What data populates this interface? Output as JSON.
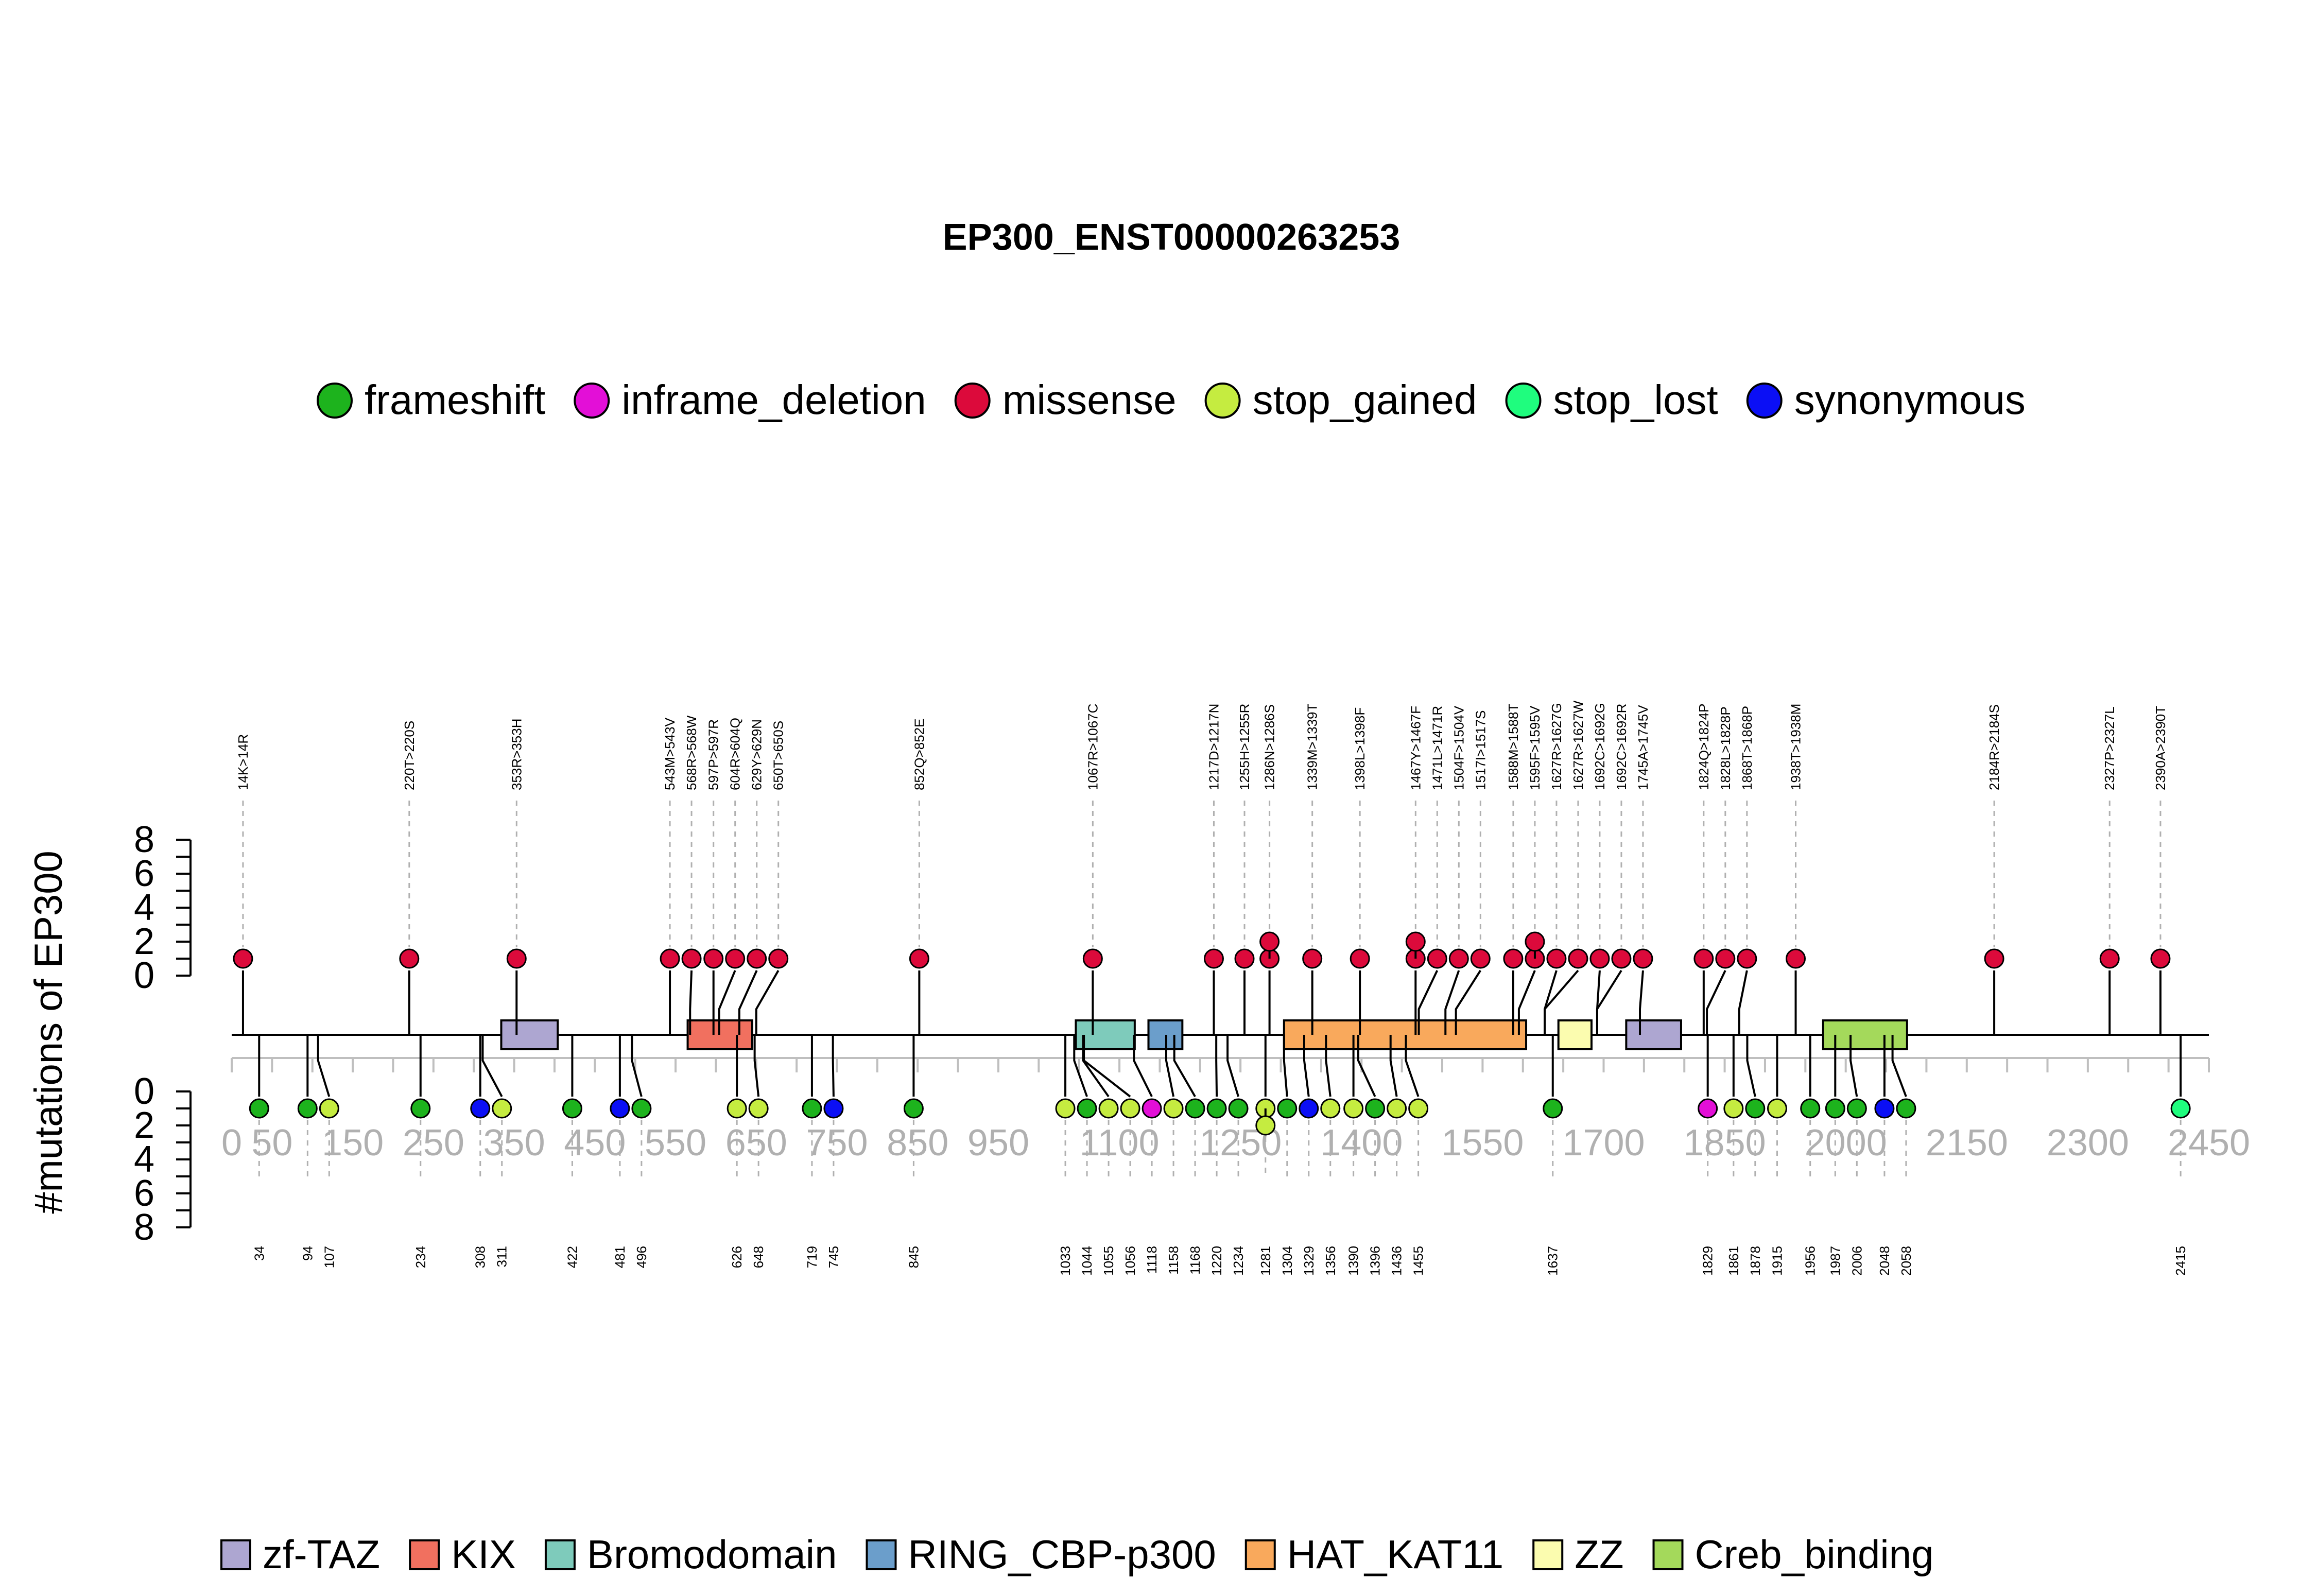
{
  "chart_data": {
    "type": "lollipop",
    "title": "EP300_ENST00000263253",
    "ylabel": "#mutations of EP300",
    "xlim": [
      0,
      2450
    ],
    "ylim": [
      0,
      8
    ],
    "x_ticks": [
      0,
      50,
      150,
      250,
      350,
      450,
      550,
      650,
      750,
      850,
      950,
      1100,
      1250,
      1400,
      1550,
      1700,
      1850,
      2000,
      2150,
      2300,
      2450
    ],
    "y_ticks": [
      0,
      2,
      4,
      6,
      8
    ],
    "legend_top": [
      {
        "name": "frameshift",
        "color": "#1db31d"
      },
      {
        "name": "inframe_deletion",
        "color": "#e30fd7"
      },
      {
        "name": "missense",
        "color": "#dc0a3b"
      },
      {
        "name": "stop_gained",
        "color": "#c5ec40"
      },
      {
        "name": "stop_lost",
        "color": "#1ffd7e"
      },
      {
        "name": "synonymous",
        "color": "#0b0ff5"
      }
    ],
    "domains": [
      {
        "name": "zf-TAZ",
        "color": "#ada6d1",
        "start": 334,
        "end": 404
      },
      {
        "name": "KIX",
        "color": "#f1705f",
        "start": 565,
        "end": 645
      },
      {
        "name": "Bromodomain",
        "color": "#7ecbbb",
        "start": 1046,
        "end": 1119
      },
      {
        "name": "RING_CBP-p300",
        "color": "#6b9ecb",
        "start": 1136,
        "end": 1178
      },
      {
        "name": "HAT_KAT11",
        "color": "#f9a95c",
        "start": 1304,
        "end": 1604
      },
      {
        "name": "ZZ",
        "color": "#fbfcaf",
        "start": 1644,
        "end": 1685
      },
      {
        "name": "zf-TAZ",
        "color": "#ada6d1",
        "start": 1728,
        "end": 1796
      },
      {
        "name": "Creb_binding",
        "color": "#a4d95b",
        "start": 1972,
        "end": 2076
      }
    ],
    "above": [
      {
        "pos": 14,
        "count": 1,
        "label": "14K>14R",
        "type": "missense"
      },
      {
        "pos": 220,
        "count": 1,
        "label": "220T>220S",
        "type": "missense"
      },
      {
        "pos": 353,
        "count": 1,
        "label": "353R>353H",
        "type": "missense"
      },
      {
        "pos": 543,
        "count": 1,
        "label": "543M>543V",
        "type": "missense"
      },
      {
        "pos": 568,
        "count": 1,
        "label": "568R>568W",
        "type": "missense"
      },
      {
        "pos": 597,
        "count": 1,
        "label": "597P>597R",
        "type": "missense"
      },
      {
        "pos": 604,
        "count": 1,
        "label": "604R>604Q",
        "type": "missense"
      },
      {
        "pos": 629,
        "count": 1,
        "label": "629Y>629N",
        "type": "missense"
      },
      {
        "pos": 650,
        "count": 1,
        "label": "650T>650S",
        "type": "missense"
      },
      {
        "pos": 852,
        "count": 1,
        "label": "852Q>852E",
        "type": "missense"
      },
      {
        "pos": 1067,
        "count": 1,
        "label": "1067R>1067C",
        "type": "missense"
      },
      {
        "pos": 1217,
        "count": 1,
        "label": "1217D>1217N",
        "type": "missense"
      },
      {
        "pos": 1255,
        "count": 1,
        "label": "1255H>1255R",
        "type": "missense"
      },
      {
        "pos": 1286,
        "count": 2,
        "label": "1286N>1286S",
        "type": "missense"
      },
      {
        "pos": 1339,
        "count": 1,
        "label": "1339M>1339T",
        "type": "missense"
      },
      {
        "pos": 1398,
        "count": 1,
        "label": "1398L>1398F",
        "type": "missense"
      },
      {
        "pos": 1467,
        "count": 2,
        "label": "1467Y>1467F",
        "type": "missense"
      },
      {
        "pos": 1471,
        "count": 1,
        "label": "1471L>1471R",
        "type": "missense"
      },
      {
        "pos": 1504,
        "count": 1,
        "label": "1504F>1504V",
        "type": "missense"
      },
      {
        "pos": 1517,
        "count": 1,
        "label": "1517I>1517S",
        "type": "missense"
      },
      {
        "pos": 1588,
        "count": 1,
        "label": "1588M>1588T",
        "type": "missense"
      },
      {
        "pos": 1595,
        "count": 2,
        "label": "1595F>1595V",
        "type": "missense"
      },
      {
        "pos": 1627,
        "count": 1,
        "label": "1627R>1627G",
        "type": "missense"
      },
      {
        "pos": 1627,
        "count": 1,
        "label": "1627R>1627W",
        "type": "missense"
      },
      {
        "pos": 1692,
        "count": 1,
        "label": "1692C>1692G",
        "type": "missense"
      },
      {
        "pos": 1692,
        "count": 1,
        "label": "1692C>1692R",
        "type": "missense"
      },
      {
        "pos": 1745,
        "count": 1,
        "label": "1745A>1745V",
        "type": "missense"
      },
      {
        "pos": 1824,
        "count": 1,
        "label": "1824Q>1824P",
        "type": "missense"
      },
      {
        "pos": 1828,
        "count": 1,
        "label": "1828L>1828P",
        "type": "missense"
      },
      {
        "pos": 1868,
        "count": 1,
        "label": "1868T>1868P",
        "type": "missense"
      },
      {
        "pos": 1938,
        "count": 1,
        "label": "1938T>1938M",
        "type": "missense"
      },
      {
        "pos": 2184,
        "count": 1,
        "label": "2184R>2184S",
        "type": "missense"
      },
      {
        "pos": 2327,
        "count": 1,
        "label": "2327P>2327L",
        "type": "missense"
      },
      {
        "pos": 2390,
        "count": 1,
        "label": "2390A>2390T",
        "type": "missense"
      }
    ],
    "below": [
      {
        "pos": 34,
        "count": 1,
        "label": "34",
        "type": "frameshift"
      },
      {
        "pos": 94,
        "count": 1,
        "label": "94",
        "type": "frameshift"
      },
      {
        "pos": 107,
        "count": 1,
        "label": "107",
        "type": "stop_gained"
      },
      {
        "pos": 234,
        "count": 1,
        "label": "234",
        "type": "frameshift"
      },
      {
        "pos": 308,
        "count": 1,
        "label": "308",
        "type": "synonymous"
      },
      {
        "pos": 311,
        "count": 1,
        "label": "311",
        "type": "stop_gained"
      },
      {
        "pos": 422,
        "count": 1,
        "label": "422",
        "type": "frameshift"
      },
      {
        "pos": 481,
        "count": 1,
        "label": "481",
        "type": "synonymous"
      },
      {
        "pos": 496,
        "count": 1,
        "label": "496",
        "type": "frameshift"
      },
      {
        "pos": 626,
        "count": 1,
        "label": "626",
        "type": "stop_gained"
      },
      {
        "pos": 648,
        "count": 1,
        "label": "648",
        "type": "stop_gained"
      },
      {
        "pos": 719,
        "count": 1,
        "label": "719",
        "type": "frameshift"
      },
      {
        "pos": 745,
        "count": 1,
        "label": "745",
        "type": "synonymous"
      },
      {
        "pos": 845,
        "count": 1,
        "label": "845",
        "type": "frameshift"
      },
      {
        "pos": 1033,
        "count": 1,
        "label": "1033",
        "type": "stop_gained"
      },
      {
        "pos": 1044,
        "count": 1,
        "label": "1044",
        "type": "frameshift"
      },
      {
        "pos": 1055,
        "count": 1,
        "label": "1055",
        "type": "stop_gained"
      },
      {
        "pos": 1056,
        "count": 1,
        "label": "1056",
        "type": "stop_gained"
      },
      {
        "pos": 1118,
        "count": 1,
        "label": "1118",
        "type": "inframe_deletion"
      },
      {
        "pos": 1158,
        "count": 1,
        "label": "1158",
        "type": "stop_gained"
      },
      {
        "pos": 1168,
        "count": 1,
        "label": "1168",
        "type": "frameshift"
      },
      {
        "pos": 1220,
        "count": 1,
        "label": "1220",
        "type": "frameshift"
      },
      {
        "pos": 1234,
        "count": 1,
        "label": "1234",
        "type": "frameshift"
      },
      {
        "pos": 1281,
        "count": 2,
        "label": "1281",
        "type": "stop_gained"
      },
      {
        "pos": 1304,
        "count": 1,
        "label": "1304",
        "type": "frameshift"
      },
      {
        "pos": 1329,
        "count": 1,
        "label": "1329",
        "type": "synonymous"
      },
      {
        "pos": 1356,
        "count": 1,
        "label": "1356",
        "type": "stop_gained"
      },
      {
        "pos": 1390,
        "count": 1,
        "label": "1390",
        "type": "stop_gained"
      },
      {
        "pos": 1396,
        "count": 1,
        "label": "1396",
        "type": "frameshift"
      },
      {
        "pos": 1436,
        "count": 1,
        "label": "1436",
        "type": "stop_gained"
      },
      {
        "pos": 1455,
        "count": 1,
        "label": "1455",
        "type": "stop_gained"
      },
      {
        "pos": 1637,
        "count": 1,
        "label": "1637",
        "type": "frameshift"
      },
      {
        "pos": 1829,
        "count": 1,
        "label": "1829",
        "type": "inframe_deletion"
      },
      {
        "pos": 1861,
        "count": 1,
        "label": "1861",
        "type": "stop_gained"
      },
      {
        "pos": 1878,
        "count": 1,
        "label": "1878",
        "type": "frameshift"
      },
      {
        "pos": 1915,
        "count": 1,
        "label": "1915",
        "type": "stop_gained"
      },
      {
        "pos": 1956,
        "count": 1,
        "label": "1956",
        "type": "frameshift"
      },
      {
        "pos": 1987,
        "count": 1,
        "label": "1987",
        "type": "frameshift"
      },
      {
        "pos": 2006,
        "count": 1,
        "label": "2006",
        "type": "frameshift"
      },
      {
        "pos": 2048,
        "count": 1,
        "label": "2048",
        "type": "synonymous"
      },
      {
        "pos": 2058,
        "count": 1,
        "label": "2058",
        "type": "frameshift"
      },
      {
        "pos": 2415,
        "count": 1,
        "label": "2415",
        "type": "stop_lost"
      }
    ],
    "legend_bottom": [
      {
        "name": "zf-TAZ",
        "color": "#ada6d1"
      },
      {
        "name": "KIX",
        "color": "#f1705f"
      },
      {
        "name": "Bromodomain",
        "color": "#7ecbbb"
      },
      {
        "name": "RING_CBP-p300",
        "color": "#6b9ecb"
      },
      {
        "name": "HAT_KAT11",
        "color": "#f9a95c"
      },
      {
        "name": "ZZ",
        "color": "#fbfcaf"
      },
      {
        "name": "Creb_binding",
        "color": "#a4d95b"
      }
    ]
  }
}
